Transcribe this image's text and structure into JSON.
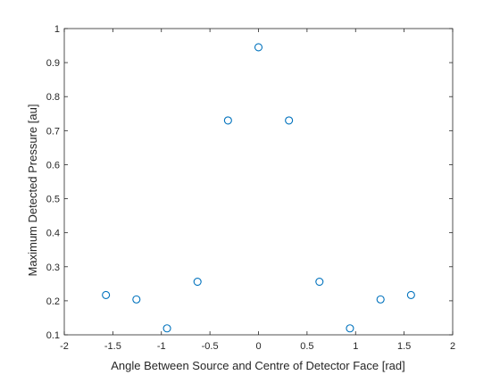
{
  "chart_data": {
    "type": "scatter",
    "title": "",
    "xlabel": "Angle Between Source and Centre of Detector Face [rad]",
    "ylabel": "Maximum Detected Pressure [au]",
    "xlim": [
      -2,
      2
    ],
    "ylim": [
      0.1,
      1
    ],
    "xticks": [
      -2,
      -1.5,
      -1,
      -0.5,
      0,
      0.5,
      1,
      1.5,
      2
    ],
    "xtick_labels": [
      "-2",
      "-1.5",
      "-1",
      "-0.5",
      "0",
      "0.5",
      "1",
      "1.5",
      "2"
    ],
    "yticks": [
      0.1,
      0.2,
      0.3,
      0.4,
      0.5,
      0.6,
      0.7,
      0.8,
      0.9,
      1
    ],
    "ytick_labels": [
      "0.1",
      "0.2",
      "0.3",
      "0.4",
      "0.5",
      "0.6",
      "0.7",
      "0.8",
      "0.9",
      "1"
    ],
    "grid": false,
    "marker": "circle-open",
    "color": "#0072BD",
    "points": [
      {
        "x": -1.571,
        "y": 0.217
      },
      {
        "x": -1.257,
        "y": 0.204
      },
      {
        "x": -0.942,
        "y": 0.119
      },
      {
        "x": -0.628,
        "y": 0.256
      },
      {
        "x": -0.314,
        "y": 0.73
      },
      {
        "x": 0.0,
        "y": 0.945
      },
      {
        "x": 0.314,
        "y": 0.73
      },
      {
        "x": 0.628,
        "y": 0.256
      },
      {
        "x": 0.942,
        "y": 0.119
      },
      {
        "x": 1.257,
        "y": 0.204
      },
      {
        "x": 1.571,
        "y": 0.217
      }
    ]
  }
}
